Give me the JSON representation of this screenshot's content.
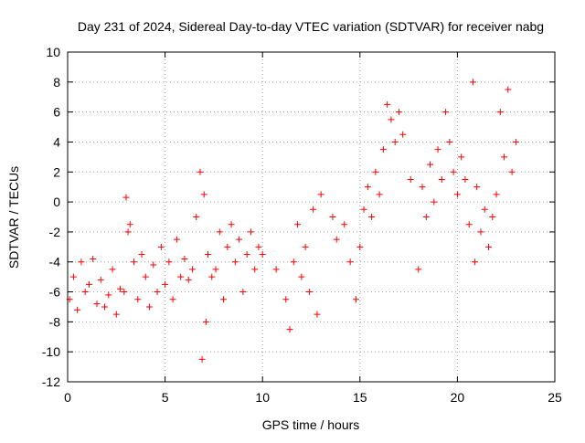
{
  "chart_data": {
    "type": "scatter",
    "title": "Day 231 of 2024, Sidereal Day-to-day VTEC variation (SDTVAR) for receiver nabg",
    "xlabel": "GPS time / hours",
    "ylabel": "SDTVAR / TECUs",
    "xlim": [
      0,
      25
    ],
    "ylim": [
      -12,
      10
    ],
    "xticks": [
      0,
      5,
      10,
      15,
      20,
      25
    ],
    "yticks": [
      -12,
      -10,
      -8,
      -6,
      -4,
      -2,
      0,
      2,
      4,
      6,
      8,
      10
    ],
    "grid": true,
    "marker": "+",
    "color": "#ff0000",
    "series": [
      {
        "name": "SDTVAR",
        "x": [
          0.1,
          0.3,
          0.5,
          0.7,
          0.9,
          1.1,
          1.3,
          1.5,
          1.7,
          1.9,
          2.1,
          2.3,
          2.5,
          2.7,
          2.9,
          3.0,
          3.1,
          3.2,
          3.4,
          3.6,
          3.8,
          4.0,
          4.2,
          4.4,
          4.6,
          4.8,
          5.0,
          5.2,
          5.4,
          5.6,
          5.8,
          6.0,
          6.2,
          6.4,
          6.6,
          6.8,
          6.9,
          7.0,
          7.1,
          7.2,
          7.4,
          7.6,
          7.8,
          8.0,
          8.2,
          8.4,
          8.6,
          8.8,
          9.0,
          9.2,
          9.4,
          9.6,
          9.8,
          10.0,
          10.7,
          11.2,
          11.4,
          11.6,
          11.8,
          12.0,
          12.2,
          12.4,
          12.6,
          12.8,
          13.0,
          13.6,
          13.8,
          14.2,
          14.5,
          14.8,
          15.0,
          15.2,
          15.4,
          15.6,
          15.8,
          16.0,
          16.2,
          16.4,
          16.6,
          16.8,
          17.0,
          17.2,
          17.6,
          18.0,
          18.2,
          18.4,
          18.6,
          18.8,
          19.0,
          19.2,
          19.4,
          19.6,
          19.8,
          20.0,
          20.2,
          20.4,
          20.6,
          20.8,
          20.9,
          21.0,
          21.2,
          21.4,
          21.6,
          21.8,
          22.0,
          22.2,
          22.4,
          22.6,
          22.8,
          23.0
        ],
        "y": [
          -6.5,
          -5.0,
          -7.2,
          -4.0,
          -6.0,
          -5.5,
          -3.8,
          -6.8,
          -5.2,
          -7.0,
          -6.2,
          -4.5,
          -7.5,
          -5.8,
          -6.0,
          0.3,
          -2.0,
          -1.5,
          -4.0,
          -6.5,
          -3.5,
          -5.0,
          -7.0,
          -4.2,
          -6.0,
          -3.0,
          -5.5,
          -4.0,
          -6.5,
          -2.5,
          -5.0,
          -3.8,
          -5.2,
          -4.5,
          -1.0,
          2.0,
          -10.5,
          0.5,
          -8.0,
          -3.5,
          -5.0,
          -4.5,
          -2.0,
          -6.5,
          -3.0,
          -1.5,
          -4.0,
          -2.5,
          -6.0,
          -3.5,
          -2.0,
          -4.5,
          -3.0,
          -3.5,
          -4.5,
          -6.5,
          -8.5,
          -4.0,
          -1.5,
          -5.0,
          -3.0,
          -6.0,
          -0.5,
          -7.5,
          0.5,
          -1.0,
          -2.5,
          -1.5,
          -4.0,
          -6.5,
          -3.0,
          -0.5,
          1.0,
          -1.0,
          2.0,
          0.5,
          3.5,
          6.5,
          5.5,
          4.0,
          6.0,
          4.5,
          1.5,
          -4.5,
          1.0,
          -1.0,
          2.5,
          0.0,
          3.5,
          1.5,
          6.0,
          4.0,
          2.0,
          0.5,
          3.0,
          1.5,
          -1.5,
          8.0,
          -4.0,
          1.0,
          -2.0,
          -0.5,
          -3.0,
          -1.0,
          0.5,
          6.0,
          3.0,
          7.5,
          2.0,
          4.0
        ]
      }
    ]
  }
}
